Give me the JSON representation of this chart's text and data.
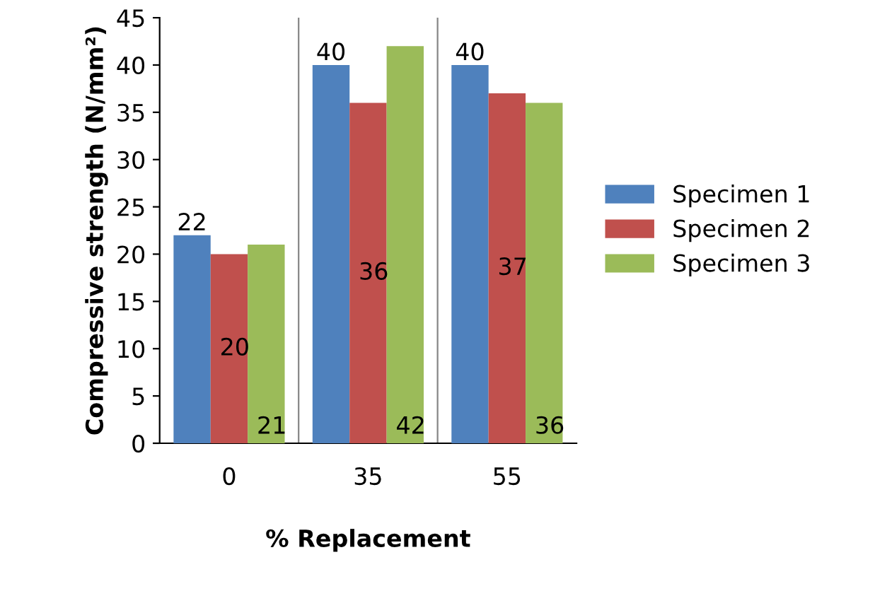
{
  "chart_data": {
    "type": "bar",
    "xlabel": "% Replacement",
    "ylabel": "Compressive strength (N/mm²)",
    "categories": [
      "0",
      "35",
      "55"
    ],
    "series": [
      {
        "name": "Specimen 1",
        "color": "#4f81bd",
        "values": [
          22,
          40,
          40
        ]
      },
      {
        "name": "Specimen 2",
        "color": "#c0504d",
        "values": [
          20,
          36,
          37
        ]
      },
      {
        "name": "Specimen 3",
        "color": "#9bbb59",
        "values": [
          21,
          42,
          36
        ]
      }
    ],
    "ylim": [
      0,
      45
    ],
    "yticks": [
      0,
      5,
      10,
      15,
      20,
      25,
      30,
      35,
      40,
      45
    ],
    "grid": "x",
    "legend": "right",
    "data_labels": true
  }
}
